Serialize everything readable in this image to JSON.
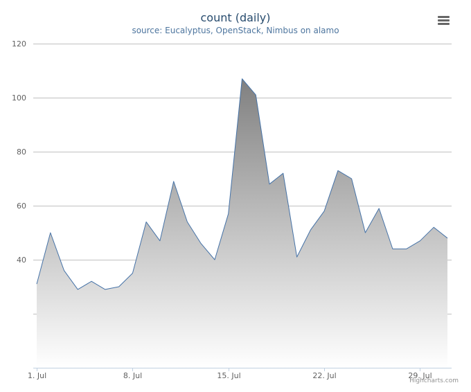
{
  "chart_data": {
    "type": "area",
    "title": "count (daily)",
    "subtitle": "source: Eucalyptus, OpenStack, Nimbus on alamo",
    "x": [
      "2014-07-01",
      "2014-07-02",
      "2014-07-03",
      "2014-07-04",
      "2014-07-05",
      "2014-07-06",
      "2014-07-07",
      "2014-07-08",
      "2014-07-09",
      "2014-07-10",
      "2014-07-11",
      "2014-07-12",
      "2014-07-13",
      "2014-07-14",
      "2014-07-15",
      "2014-07-16",
      "2014-07-17",
      "2014-07-18",
      "2014-07-19",
      "2014-07-20",
      "2014-07-21",
      "2014-07-22",
      "2014-07-23",
      "2014-07-24",
      "2014-07-25",
      "2014-07-26",
      "2014-07-27",
      "2014-07-28",
      "2014-07-29",
      "2014-07-30",
      "2014-07-31"
    ],
    "series": [
      {
        "values": [
          31,
          50,
          36,
          29,
          32,
          29,
          30,
          35,
          54,
          47,
          69,
          54,
          46,
          40,
          57,
          107,
          101,
          68,
          72,
          41,
          51,
          58,
          73,
          70,
          50,
          59,
          44,
          44,
          47,
          52,
          48
        ]
      }
    ],
    "x_tick_labels": [
      "1. Jul",
      "8. Jul",
      "15. Jul",
      "22. Jul",
      "29. Jul"
    ],
    "y_tick_labels": [
      "40",
      "60",
      "80",
      "100",
      "120"
    ],
    "y_gridlines": [
      20,
      40,
      60,
      80,
      100,
      120
    ],
    "ylim": [
      0,
      120
    ],
    "xlabel": "",
    "ylabel": "",
    "grid": true,
    "legend": "none",
    "colors": {
      "line": "#4572a7",
      "fill_top": "#808080",
      "fill_bottom": "#ffffff",
      "grid": "#c0c0c0",
      "axis": "#c0d0e0"
    }
  },
  "ui": {
    "menu_icon": "hamburger-menu-icon",
    "credits": "Highcharts.com"
  }
}
